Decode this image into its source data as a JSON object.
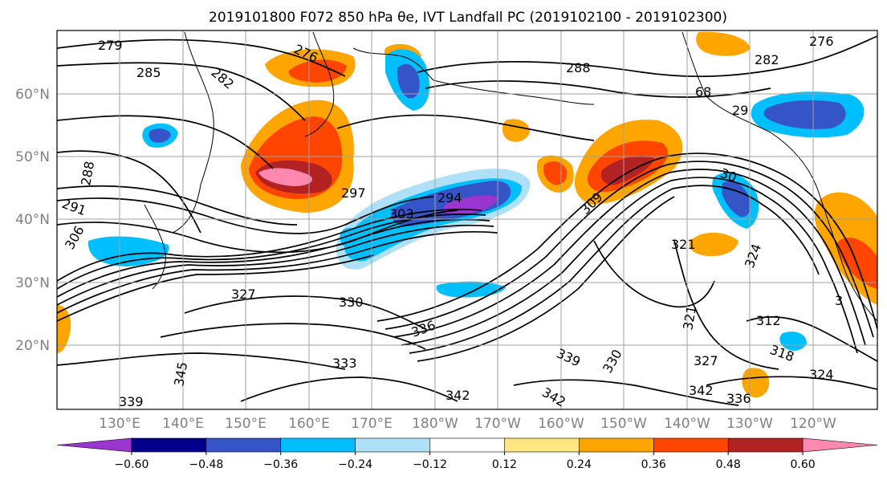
{
  "title": "2019101800 F072 850 hPa θe, IVT Landfall PC (2019102100 - 2019102300)",
  "map": {
    "lat_labels": [
      "60°N",
      "50°N",
      "40°N",
      "30°N",
      "20°N"
    ],
    "lon_labels": [
      "130°E",
      "140°E",
      "150°E",
      "160°E",
      "170°E",
      "180°W",
      "170°W",
      "160°W",
      "150°W",
      "140°W",
      "130°W",
      "120°W"
    ],
    "contour_labels": [
      "279",
      "285",
      "276",
      "282",
      "288",
      "276",
      "282",
      "288",
      "291",
      "297",
      "303",
      "294",
      "306",
      "309",
      "321",
      "324",
      "327",
      "330",
      "336",
      "333",
      "339",
      "342",
      "345",
      "339",
      "342",
      "330",
      "327",
      "312",
      "318",
      "324",
      "336",
      "342",
      "321",
      "68",
      "29",
      "30",
      "3"
    ]
  },
  "colorbar": {
    "tick_labels": [
      "−0.60",
      "−0.48",
      "−0.36",
      "−0.24",
      "−0.12",
      "0.12",
      "0.24",
      "0.36",
      "0.48",
      "0.60"
    ],
    "colors": [
      "#9a35cf",
      "#00008b",
      "#3454c8",
      "#00bfff",
      "#aee0f7",
      "#ffffff",
      "#ffe680",
      "#ffa500",
      "#ff4500",
      "#b22222",
      "#ff88b0"
    ]
  }
}
